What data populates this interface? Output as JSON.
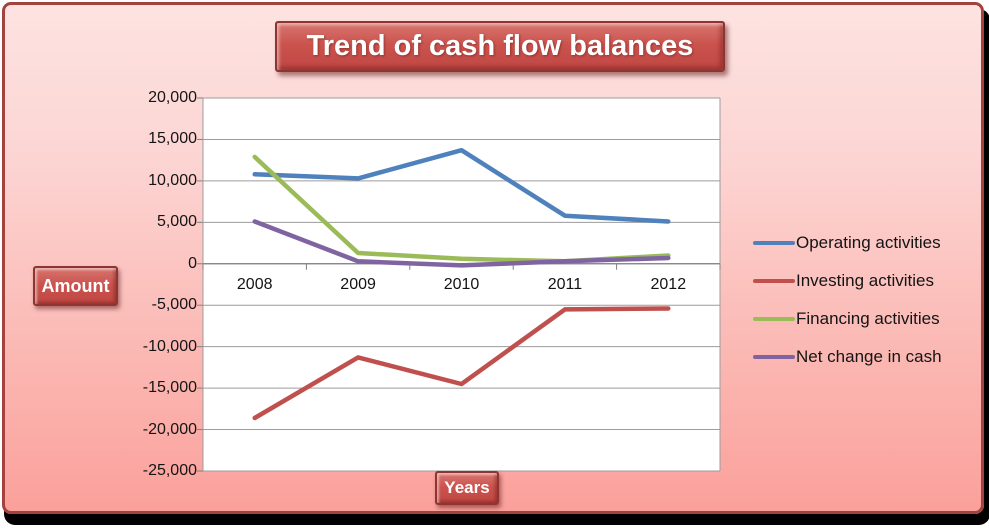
{
  "title": "Trend of cash flow balances",
  "axis_boxes": {
    "y_label": "Amount",
    "x_label": "Years"
  },
  "colors": {
    "frame_border": "#A6423E",
    "background_top": "#FDE3E1",
    "background_bottom": "#FBA09B",
    "label_box_fill": "#CB534E",
    "plot_background": "#FFFFFF",
    "gridline": "#9C9C9C",
    "axis_line": "#808080",
    "axis_text": "#141414"
  },
  "chart_data": {
    "type": "line",
    "title": "Trend of cash flow balances",
    "xlabel": "Years",
    "ylabel": "Amount",
    "categories": [
      "2008",
      "2009",
      "2010",
      "2011",
      "2012"
    ],
    "series": [
      {
        "name": "Operating activities",
        "color": "#4F81BD",
        "values": [
          10800,
          10300,
          13700,
          5800,
          5100
        ]
      },
      {
        "name": "Investing activities",
        "color": "#C0504D",
        "values": [
          -18600,
          -11300,
          -14500,
          -5500,
          -5400
        ]
      },
      {
        "name": "Financing activities",
        "color": "#9BBB59",
        "values": [
          12900,
          1300,
          600,
          300,
          1000
        ]
      },
      {
        "name": "Net change in cash",
        "color": "#8064A2",
        "values": [
          5100,
          300,
          -200,
          300,
          700
        ]
      }
    ],
    "ylim": [
      -25000,
      20000
    ],
    "ytick_step": 5000,
    "y_ticks": [
      {
        "label": "20,000",
        "value": 20000
      },
      {
        "label": "15,000",
        "value": 15000
      },
      {
        "label": "10,000",
        "value": 10000
      },
      {
        "label": "5,000",
        "value": 5000
      },
      {
        "label": "0",
        "value": 0
      },
      {
        "label": "-5,000",
        "value": -5000
      },
      {
        "label": "-10,000",
        "value": -10000
      },
      {
        "label": "-15,000",
        "value": -15000
      },
      {
        "label": "-20,000",
        "value": -20000
      },
      {
        "label": "-25,000",
        "value": -25000
      }
    ],
    "grid": true,
    "legend_position": "right"
  }
}
